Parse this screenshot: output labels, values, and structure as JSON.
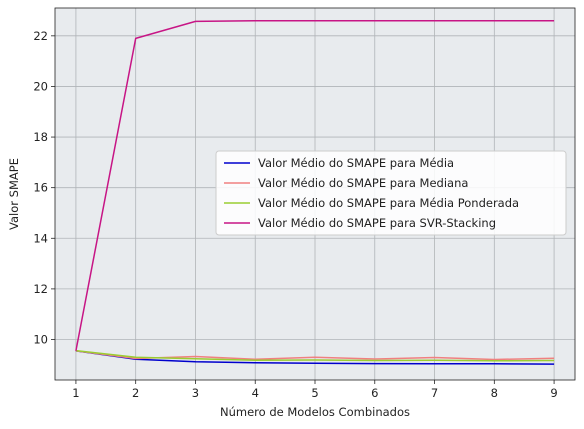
{
  "chart_data": {
    "type": "line",
    "xlabel": "Número de Modelos Combinados",
    "ylabel": "Valor SMAPE",
    "x": [
      1,
      2,
      3,
      4,
      5,
      6,
      7,
      8,
      9
    ],
    "xlim": [
      0.65,
      9.35
    ],
    "ylim": [
      8.4,
      23.1
    ],
    "xticks": [
      1,
      2,
      3,
      4,
      5,
      6,
      7,
      8,
      9
    ],
    "yticks": [
      10,
      12,
      14,
      16,
      18,
      20,
      22
    ],
    "grid": true,
    "legend_position": "center-right",
    "background": "#e8ebee",
    "series": [
      {
        "name": "Valor Médio do SMAPE para Média",
        "color": "#0000cd",
        "values": [
          9.55,
          9.22,
          9.12,
          9.08,
          9.06,
          9.05,
          9.04,
          9.04,
          9.03
        ]
      },
      {
        "name": "Valor Médio do SMAPE para Mediana",
        "color": "#f08080",
        "values": [
          9.55,
          9.25,
          9.33,
          9.22,
          9.3,
          9.23,
          9.29,
          9.21,
          9.26
        ]
      },
      {
        "name": "Valor Médio do SMAPE para Média Ponderada",
        "color": "#9acd32",
        "values": [
          9.56,
          9.3,
          9.24,
          9.18,
          9.19,
          9.17,
          9.18,
          9.16,
          9.17
        ]
      },
      {
        "name": "Valor Médio do SMAPE para SVR-Stacking",
        "color": "#c71585",
        "values": [
          9.55,
          21.9,
          22.57,
          22.6,
          22.6,
          22.6,
          22.6,
          22.6,
          22.6
        ]
      }
    ]
  }
}
